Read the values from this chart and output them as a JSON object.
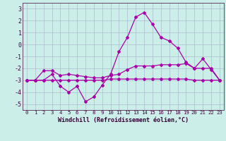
{
  "xlabel": "Windchill (Refroidissement éolien,°C)",
  "background_color": "#cceee8",
  "grid_color": "#aabbcc",
  "line_color": "#aa00aa",
  "x": [
    0,
    1,
    2,
    3,
    4,
    5,
    6,
    7,
    8,
    9,
    10,
    11,
    12,
    13,
    14,
    15,
    16,
    17,
    18,
    19,
    20,
    21,
    22,
    23
  ],
  "line1": [
    -3.0,
    -3.0,
    -3.0,
    -2.5,
    -3.5,
    -4.0,
    -3.5,
    -4.8,
    -4.4,
    -3.4,
    -2.5,
    -0.6,
    0.6,
    2.3,
    2.7,
    1.7,
    0.6,
    0.3,
    -0.3,
    -1.5,
    -2.0,
    -1.2,
    -2.1,
    -3.0
  ],
  "line2": [
    -3.0,
    -3.0,
    -2.2,
    -2.2,
    -2.6,
    -2.5,
    -2.6,
    -2.7,
    -2.8,
    -2.8,
    -2.6,
    -2.5,
    -2.1,
    -1.8,
    -1.8,
    -1.8,
    -1.7,
    -1.7,
    -1.7,
    -1.6,
    -2.0,
    -2.0,
    -2.0,
    -3.0
  ],
  "line3": [
    -3.0,
    -3.0,
    -3.0,
    -3.0,
    -3.0,
    -3.0,
    -3.0,
    -3.0,
    -3.0,
    -3.0,
    -2.9,
    -2.9,
    -2.9,
    -2.9,
    -2.9,
    -2.9,
    -2.9,
    -2.9,
    -2.9,
    -2.9,
    -3.0,
    -3.0,
    -3.0,
    -3.0
  ],
  "ylim": [
    -5.5,
    3.5
  ],
  "yticks": [
    -5,
    -4,
    -3,
    -2,
    -1,
    0,
    1,
    2,
    3
  ],
  "xticks": [
    0,
    1,
    2,
    3,
    4,
    5,
    6,
    7,
    8,
    9,
    10,
    11,
    12,
    13,
    14,
    15,
    16,
    17,
    18,
    19,
    20,
    21,
    22,
    23
  ]
}
